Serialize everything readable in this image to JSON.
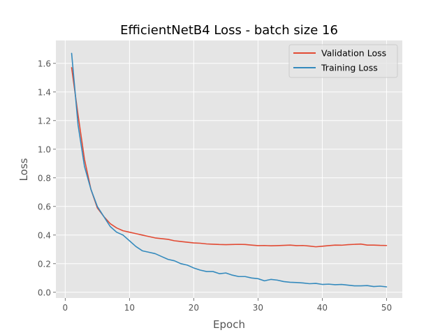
{
  "chart_data": {
    "type": "line",
    "title": "EfficientNetB4 Loss - batch size 16",
    "xlabel": "Epoch",
    "ylabel": "Loss",
    "xlim": [
      -1.45,
      52.45
    ],
    "ylim": [
      -0.04,
      1.76
    ],
    "xticks": [
      0,
      10,
      20,
      30,
      40,
      50
    ],
    "yticks": [
      0.0,
      0.2,
      0.4,
      0.6,
      0.8,
      1.0,
      1.2,
      1.4,
      1.6
    ],
    "grid": true,
    "legend_position": "upper right",
    "background": "#e5e5e5",
    "x": [
      1,
      2,
      3,
      4,
      5,
      6,
      7,
      8,
      9,
      10,
      11,
      12,
      13,
      14,
      15,
      16,
      17,
      18,
      19,
      20,
      21,
      22,
      23,
      24,
      25,
      26,
      27,
      28,
      29,
      30,
      31,
      32,
      33,
      34,
      35,
      36,
      37,
      38,
      39,
      40,
      41,
      42,
      43,
      44,
      45,
      46,
      47,
      48,
      49,
      50
    ],
    "series": [
      {
        "name": "Validation Loss",
        "color": "#e24a33",
        "values": [
          1.57,
          1.24,
          0.93,
          0.72,
          0.59,
          0.53,
          0.48,
          0.45,
          0.43,
          0.42,
          0.41,
          0.4,
          0.39,
          0.38,
          0.375,
          0.37,
          0.36,
          0.355,
          0.35,
          0.345,
          0.343,
          0.338,
          0.336,
          0.334,
          0.333,
          0.334,
          0.335,
          0.334,
          0.33,
          0.326,
          0.327,
          0.325,
          0.326,
          0.328,
          0.33,
          0.326,
          0.327,
          0.323,
          0.318,
          0.322,
          0.326,
          0.33,
          0.329,
          0.333,
          0.335,
          0.337,
          0.33,
          0.33,
          0.328,
          0.327
        ]
      },
      {
        "name": "Training Loss",
        "color": "#348abd",
        "values": [
          1.67,
          1.17,
          0.88,
          0.72,
          0.6,
          0.53,
          0.46,
          0.42,
          0.4,
          0.36,
          0.32,
          0.29,
          0.28,
          0.27,
          0.25,
          0.23,
          0.22,
          0.2,
          0.19,
          0.17,
          0.155,
          0.145,
          0.145,
          0.13,
          0.135,
          0.12,
          0.11,
          0.11,
          0.1,
          0.095,
          0.08,
          0.09,
          0.085,
          0.075,
          0.07,
          0.068,
          0.065,
          0.06,
          0.062,
          0.055,
          0.057,
          0.053,
          0.055,
          0.05,
          0.045,
          0.045,
          0.047,
          0.04,
          0.043,
          0.038
        ]
      }
    ]
  }
}
